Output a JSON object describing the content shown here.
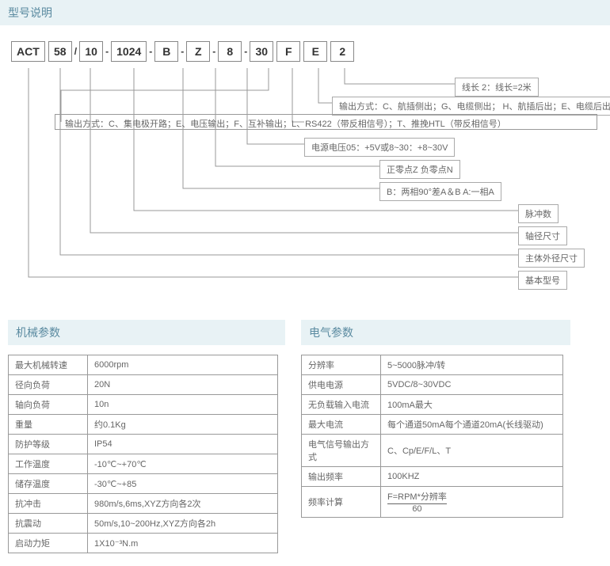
{
  "section_model": "型号说明",
  "section_mech": "机械参数",
  "section_elec": "电气参数",
  "model": {
    "p0": "ACT",
    "p1": "58",
    "p2": "10",
    "p3": "1024",
    "p4": "B",
    "p5": "Z",
    "p6": "8",
    "p7": "30",
    "p8": "F",
    "p9": "E",
    "p10": "2",
    "slash": "/",
    "dash": "-"
  },
  "labels": {
    "l0": "线长  2：线长=2米",
    "l1": "输出方式：C、航插侧出；G、电缆侧出；  H、航插后出；E、电缆后出",
    "l2": "输出方式：C、集电极开路；E、电压输出；F、互补输出；L、RS422（带反相信号）；T、推挽HTL（带反相信号）",
    "l3": "电源电压05：+5V或8~30：+8~30V",
    "l4": "正零点Z      负零点N",
    "l5": "B：两相90°差A＆B     A:一相A",
    "l6": "脉冲数",
    "l7": "轴径尺寸",
    "l8": "主体外径尺寸",
    "l9": "基本型号"
  },
  "mech_rows": [
    {
      "k": "最大机械转速",
      "v": "6000rpm"
    },
    {
      "k": "径向负荷",
      "v": "20N"
    },
    {
      "k": "轴向负荷",
      "v": "10n"
    },
    {
      "k": "重量",
      "v": "约0.1Kg"
    },
    {
      "k": "防护等级",
      "v": "IP54"
    },
    {
      "k": "工作温度",
      "v": "-10℃~+70℃"
    },
    {
      "k": "储存温度",
      "v": "-30℃~+85"
    },
    {
      "k": "抗冲击",
      "v": "980m/s,6ms,XYZ方向各2次"
    },
    {
      "k": "抗震动",
      "v": "50m/s,10~200Hz,XYZ方向各2h"
    },
    {
      "k": "启动力矩",
      "v": "1X10⁻³N.m"
    }
  ],
  "elec_rows": [
    {
      "k": "分辨率",
      "v": "5~5000脉冲/转"
    },
    {
      "k": "供电电源",
      "v": "5VDC/8~30VDC"
    },
    {
      "k": "无负载输入电流",
      "v": "100mA最大"
    },
    {
      "k": "最大电流",
      "v": "每个通道50mA每个通道20mA(长线驱动)"
    },
    {
      "k": "电气信号输出方式",
      "v": "C、Cp/E/F/L、T"
    },
    {
      "k": "输出频率",
      "v": "100KHZ"
    }
  ],
  "freq_calc_k": "频率计算",
  "freq_calc_top": "F=RPM*分辨率",
  "freq_calc_bot": "60"
}
